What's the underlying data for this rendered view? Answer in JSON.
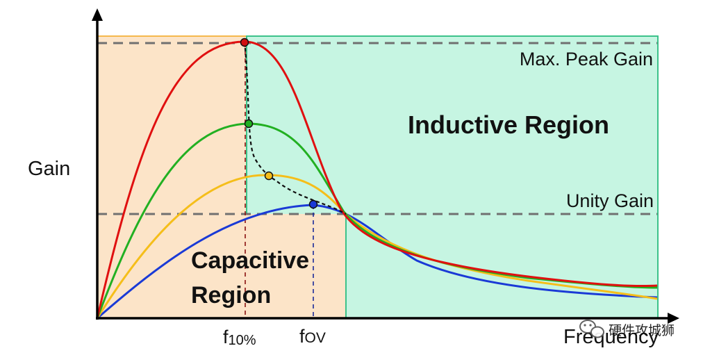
{
  "labels": {
    "y_axis": "Gain",
    "x_axis": "Frequency",
    "max_peak": "Max. Peak Gain",
    "unity": "Unity Gain",
    "inductive": "Inductive Region",
    "capacitive_line1": "Capacitive",
    "capacitive_line2": "Region",
    "f10_main": "f",
    "f10_sub": "10%",
    "fov_main": "f",
    "fov_sub": "OV",
    "watermark": "硬件攻城狮"
  },
  "colors": {
    "capacitive_fill": "#fce4c8",
    "capacitive_border": "#f5b84c",
    "inductive_fill": "#c6f5e2",
    "inductive_border": "#3cc28a",
    "red": "#e01010",
    "green": "#22b022",
    "yellow": "#f5be1a",
    "blue": "#1a3ad6",
    "dashed_guides": "#707070"
  },
  "icons": {
    "watermark": "wechat-logo-icon"
  }
}
